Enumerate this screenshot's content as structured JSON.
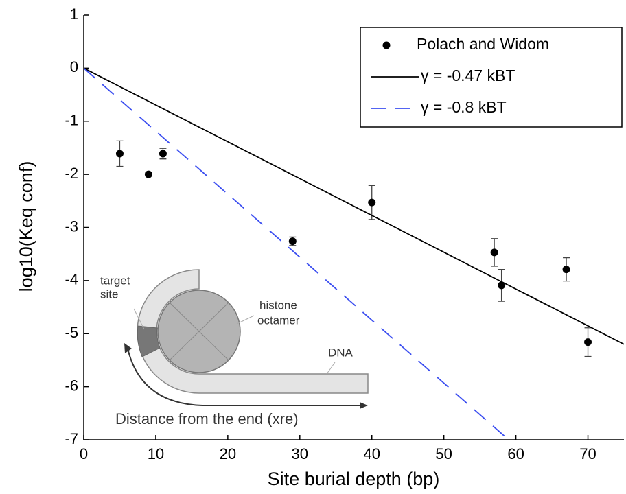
{
  "chart_data": {
    "type": "scatter",
    "x_label": "Site burial depth (bp)",
    "y_label": "log10(Keq conf)",
    "xlim": [
      0,
      75
    ],
    "ylim": [
      -7,
      1
    ],
    "xticks": [
      0,
      10,
      20,
      30,
      40,
      50,
      60,
      70
    ],
    "yticks": [
      -7,
      -6,
      -5,
      -4,
      -3,
      -2,
      -1,
      0,
      1
    ],
    "legend": "upper right",
    "series": [
      {
        "name": "Polach and Widom",
        "mode": "markers",
        "color": "#000000",
        "x": [
          5,
          9,
          11,
          29,
          40,
          57,
          58,
          67,
          70
        ],
        "values": [
          -1.61,
          -2.0,
          -1.61,
          -3.26,
          -2.53,
          -3.47,
          -4.09,
          -3.79,
          -5.16
        ],
        "errors": [
          0.24,
          0.03,
          0.1,
          0.08,
          0.32,
          0.26,
          0.3,
          0.22,
          0.27
        ]
      },
      {
        "name": "γ = -0.47 kBT",
        "mode": "line",
        "color": "#000000",
        "dash": false,
        "x": [
          0,
          75
        ],
        "values": [
          0,
          -5.2
        ]
      },
      {
        "name": "γ = -0.8 kBT",
        "mode": "line",
        "color": "#3b4ef0",
        "dash": true,
        "x": [
          0,
          59
        ],
        "values": [
          0,
          -7
        ]
      }
    ],
    "annotations": [
      "target",
      "site",
      "histone",
      "octamer",
      "DNA",
      "Distance from the end (xre)"
    ]
  }
}
